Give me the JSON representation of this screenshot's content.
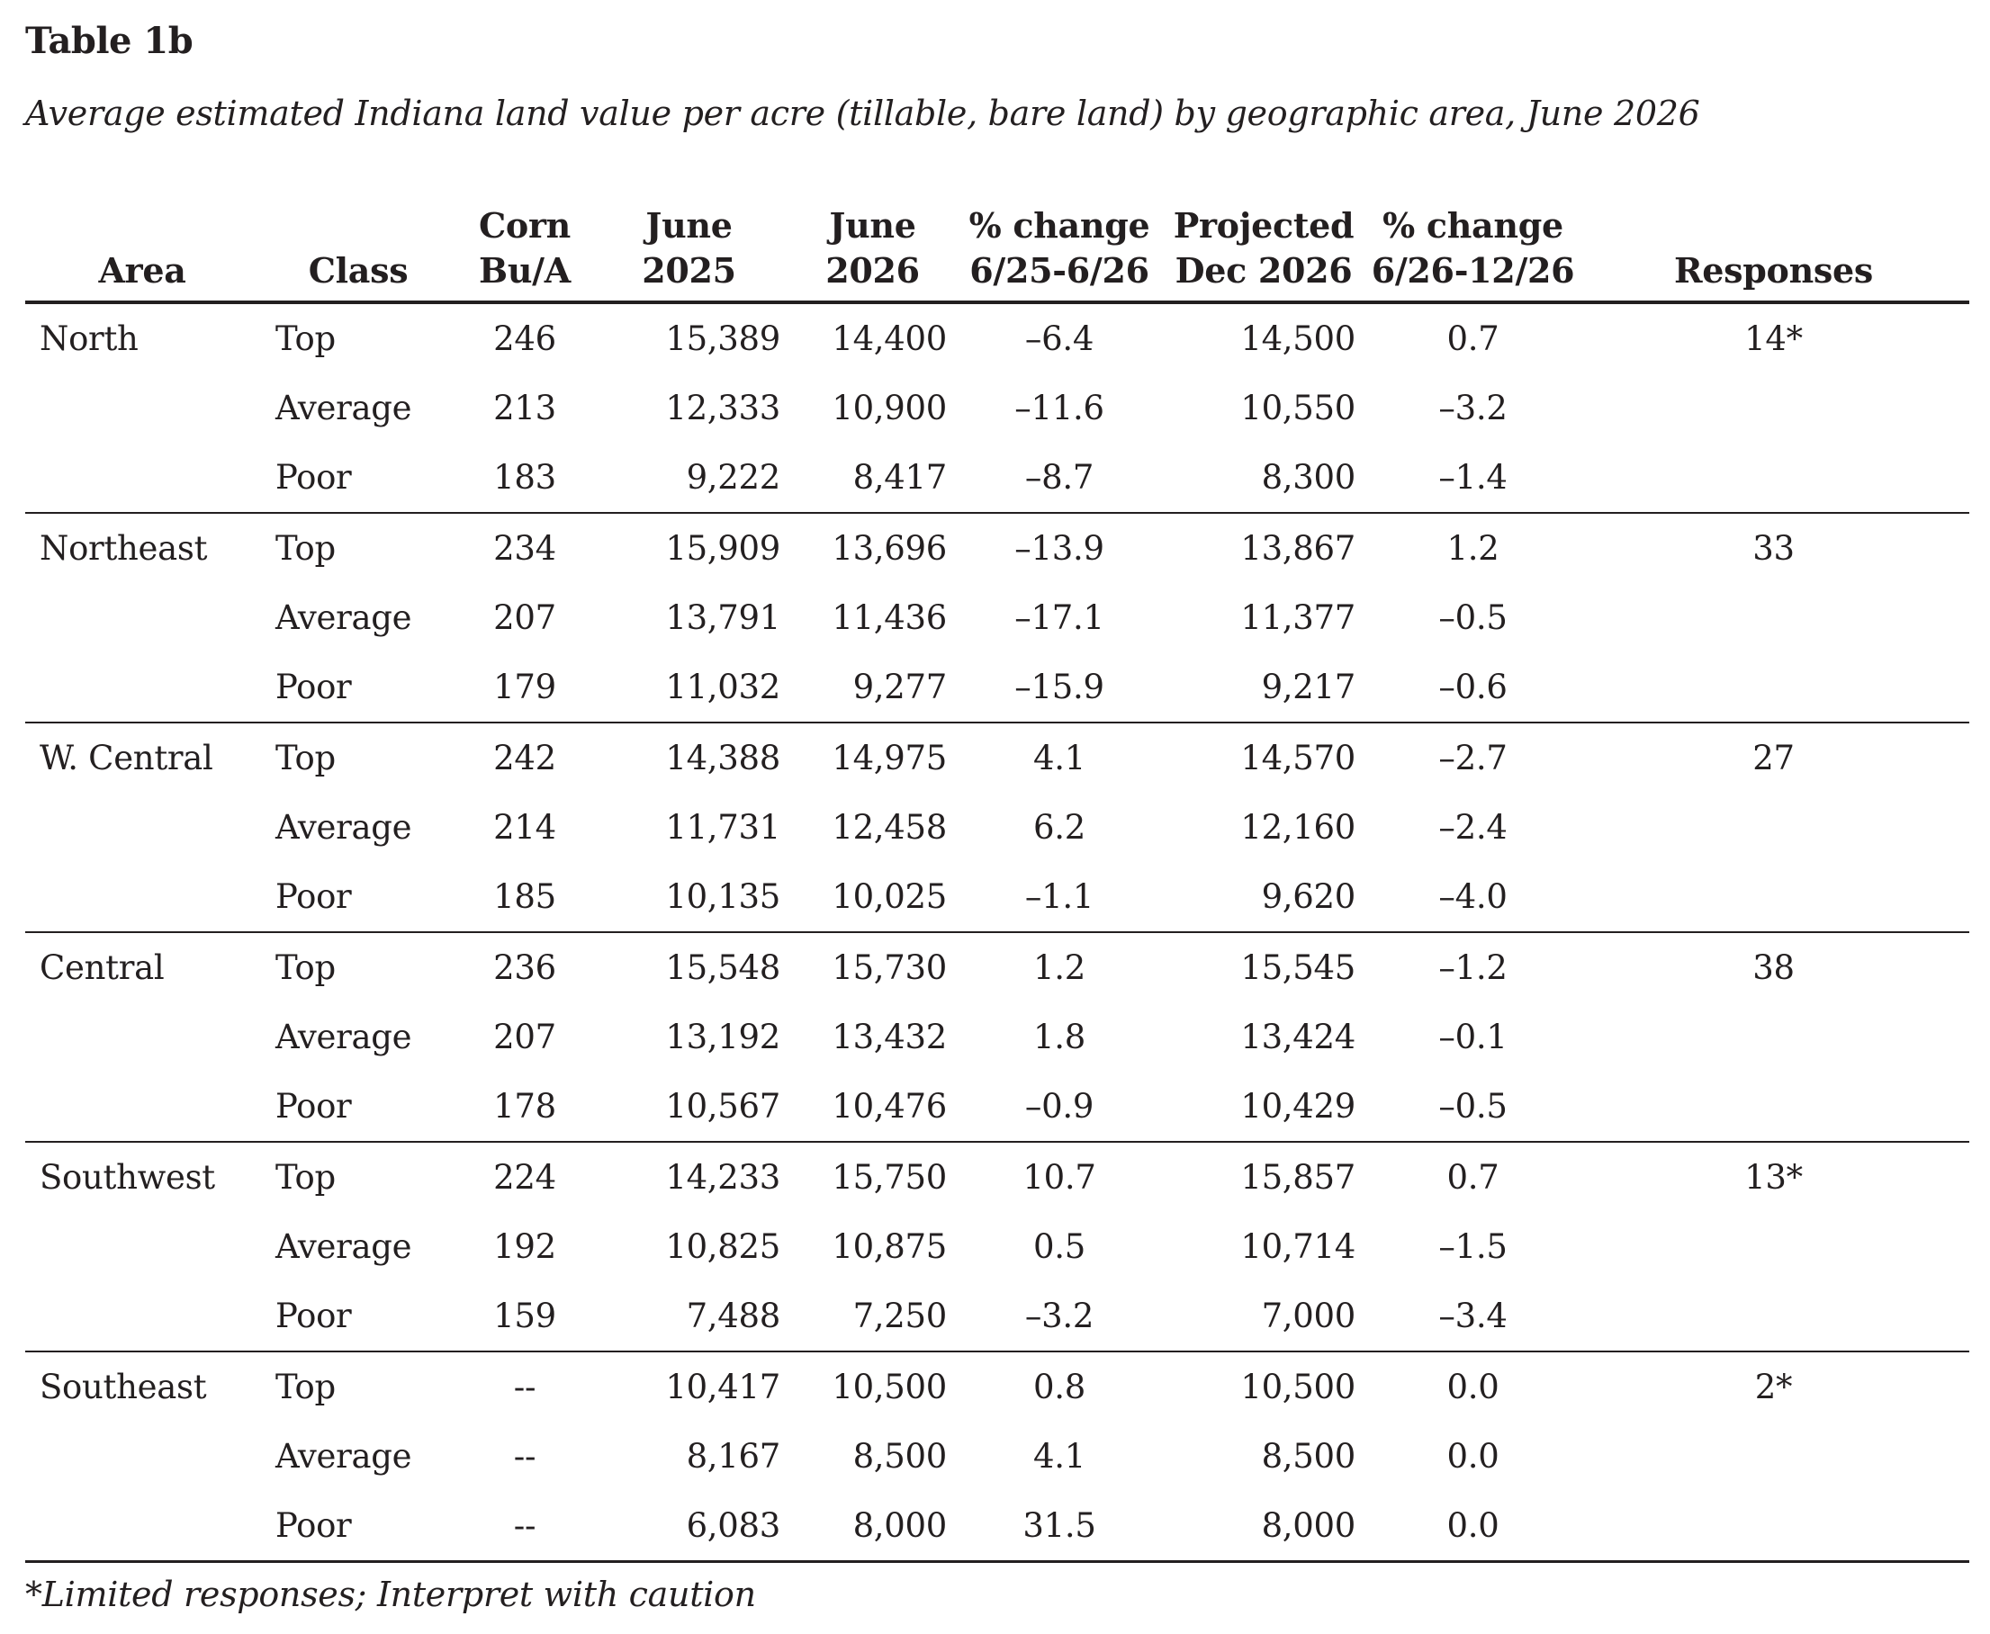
{
  "title": "Table 1b",
  "caption": "Average estimated Indiana land value per acre (tillable, bare land) by geographic area, June 2026",
  "headers": {
    "area": "Area",
    "class": "Class",
    "corn": [
      "Corn",
      "Bu/A"
    ],
    "june2025": [
      "June",
      "2025"
    ],
    "june2026": [
      "June",
      "2026"
    ],
    "change1": [
      "% change",
      "6/25-6/26"
    ],
    "projected": [
      "Projected",
      "Dec 2026"
    ],
    "change2": [
      "% change",
      "6/26-12/26"
    ],
    "responses": "Responses"
  },
  "groups": [
    {
      "area": "North",
      "responses": "14*",
      "rows": [
        {
          "class": "Top",
          "corn": "246",
          "june2025": "15,389",
          "june2026": "14,400",
          "change1": "–6.4",
          "projected": "14,500",
          "change2": "0.7"
        },
        {
          "class": "Average",
          "corn": "213",
          "june2025": "12,333",
          "june2026": "10,900",
          "change1": "–11.6",
          "projected": "10,550",
          "change2": "–3.2"
        },
        {
          "class": "Poor",
          "corn": "183",
          "june2025": "9,222",
          "june2026": "8,417",
          "change1": "–8.7",
          "projected": "8,300",
          "change2": "–1.4"
        }
      ]
    },
    {
      "area": "Northeast",
      "responses": "33",
      "rows": [
        {
          "class": "Top",
          "corn": "234",
          "june2025": "15,909",
          "june2026": "13,696",
          "change1": "–13.9",
          "projected": "13,867",
          "change2": "1.2"
        },
        {
          "class": "Average",
          "corn": "207",
          "june2025": "13,791",
          "june2026": "11,436",
          "change1": "–17.1",
          "projected": "11,377",
          "change2": "–0.5"
        },
        {
          "class": "Poor",
          "corn": "179",
          "june2025": "11,032",
          "june2026": "9,277",
          "change1": "–15.9",
          "projected": "9,217",
          "change2": "–0.6"
        }
      ]
    },
    {
      "area": "W. Central",
      "responses": "27",
      "rows": [
        {
          "class": "Top",
          "corn": "242",
          "june2025": "14,388",
          "june2026": "14,975",
          "change1": "4.1",
          "projected": "14,570",
          "change2": "–2.7"
        },
        {
          "class": "Average",
          "corn": "214",
          "june2025": "11,731",
          "june2026": "12,458",
          "change1": "6.2",
          "projected": "12,160",
          "change2": "–2.4"
        },
        {
          "class": "Poor",
          "corn": "185",
          "june2025": "10,135",
          "june2026": "10,025",
          "change1": "–1.1",
          "projected": "9,620",
          "change2": "–4.0"
        }
      ]
    },
    {
      "area": "Central",
      "responses": "38",
      "rows": [
        {
          "class": "Top",
          "corn": "236",
          "june2025": "15,548",
          "june2026": "15,730",
          "change1": "1.2",
          "projected": "15,545",
          "change2": "–1.2"
        },
        {
          "class": "Average",
          "corn": "207",
          "june2025": "13,192",
          "june2026": "13,432",
          "change1": "1.8",
          "projected": "13,424",
          "change2": "–0.1"
        },
        {
          "class": "Poor",
          "corn": "178",
          "june2025": "10,567",
          "june2026": "10,476",
          "change1": "–0.9",
          "projected": "10,429",
          "change2": "–0.5"
        }
      ]
    },
    {
      "area": "Southwest",
      "responses": "13*",
      "rows": [
        {
          "class": "Top",
          "corn": "224",
          "june2025": "14,233",
          "june2026": "15,750",
          "change1": "10.7",
          "projected": "15,857",
          "change2": "0.7"
        },
        {
          "class": "Average",
          "corn": "192",
          "june2025": "10,825",
          "june2026": "10,875",
          "change1": "0.5",
          "projected": "10,714",
          "change2": "–1.5"
        },
        {
          "class": "Poor",
          "corn": "159",
          "june2025": "7,488",
          "june2026": "7,250",
          "change1": "–3.2",
          "projected": "7,000",
          "change2": "–3.4"
        }
      ]
    },
    {
      "area": "Southeast",
      "responses": "2*",
      "rows": [
        {
          "class": "Top",
          "corn": "--",
          "june2025": "10,417",
          "june2026": "10,500",
          "change1": "0.8",
          "projected": "10,500",
          "change2": "0.0"
        },
        {
          "class": "Average",
          "corn": "--",
          "june2025": "8,167",
          "june2026": "8,500",
          "change1": "4.1",
          "projected": "8,500",
          "change2": "0.0"
        },
        {
          "class": "Poor",
          "corn": "--",
          "june2025": "6,083",
          "june2026": "8,000",
          "change1": "31.5",
          "projected": "8,000",
          "change2": "0.0"
        }
      ]
    }
  ],
  "footnote": "*Limited responses; Interpret with caution"
}
